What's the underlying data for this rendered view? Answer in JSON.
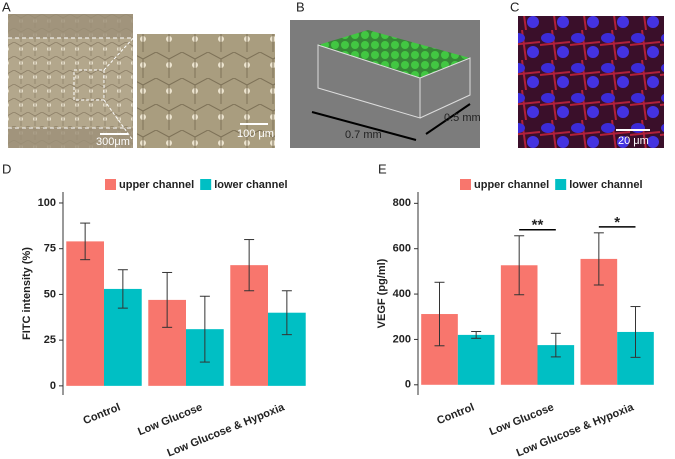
{
  "images": [
    {
      "label": "A",
      "scale_labels": [
        "300μm",
        "100 μm"
      ]
    },
    {
      "label": "B",
      "scale_labels": [
        "0.7 mm",
        "0.5 mm"
      ]
    },
    {
      "label": "C",
      "scale_labels": [
        "20 μm"
      ]
    }
  ],
  "chart_data": [
    {
      "type": "bar",
      "panel": "D",
      "ylabel": "FITC intensity (%)",
      "categories": [
        "Control",
        "Low Glucose",
        "Low Glucose & Hypoxia"
      ],
      "series": [
        {
          "name": "upper channel",
          "color": "#f8766d",
          "values": [
            79,
            47,
            66
          ],
          "errors": [
            10,
            15,
            14
          ]
        },
        {
          "name": "lower channel",
          "color": "#00bfc4",
          "values": [
            53,
            31,
            40
          ],
          "errors": [
            10.5,
            18,
            12
          ]
        }
      ],
      "ylim": [
        -5,
        106
      ],
      "yticks": [
        0,
        25,
        50,
        75,
        100
      ],
      "legend": "top"
    },
    {
      "type": "bar",
      "panel": "E",
      "ylabel": "VEGF (pg/ml)",
      "categories": [
        "Control",
        "Low Glucose",
        "Low Glucose & Hypoxia"
      ],
      "series": [
        {
          "name": "upper channel",
          "color": "#f8766d",
          "values": [
            312,
            527,
            555
          ],
          "errors": [
            140,
            130,
            115
          ]
        },
        {
          "name": "lower channel",
          "color": "#00bfc4",
          "values": [
            220,
            175,
            233
          ],
          "errors": [
            15,
            52,
            112
          ]
        }
      ],
      "significance": [
        null,
        "**",
        "*"
      ],
      "ylim": [
        -45,
        850
      ],
      "yticks": [
        0,
        200,
        400,
        600,
        800
      ],
      "legend": "top"
    }
  ]
}
